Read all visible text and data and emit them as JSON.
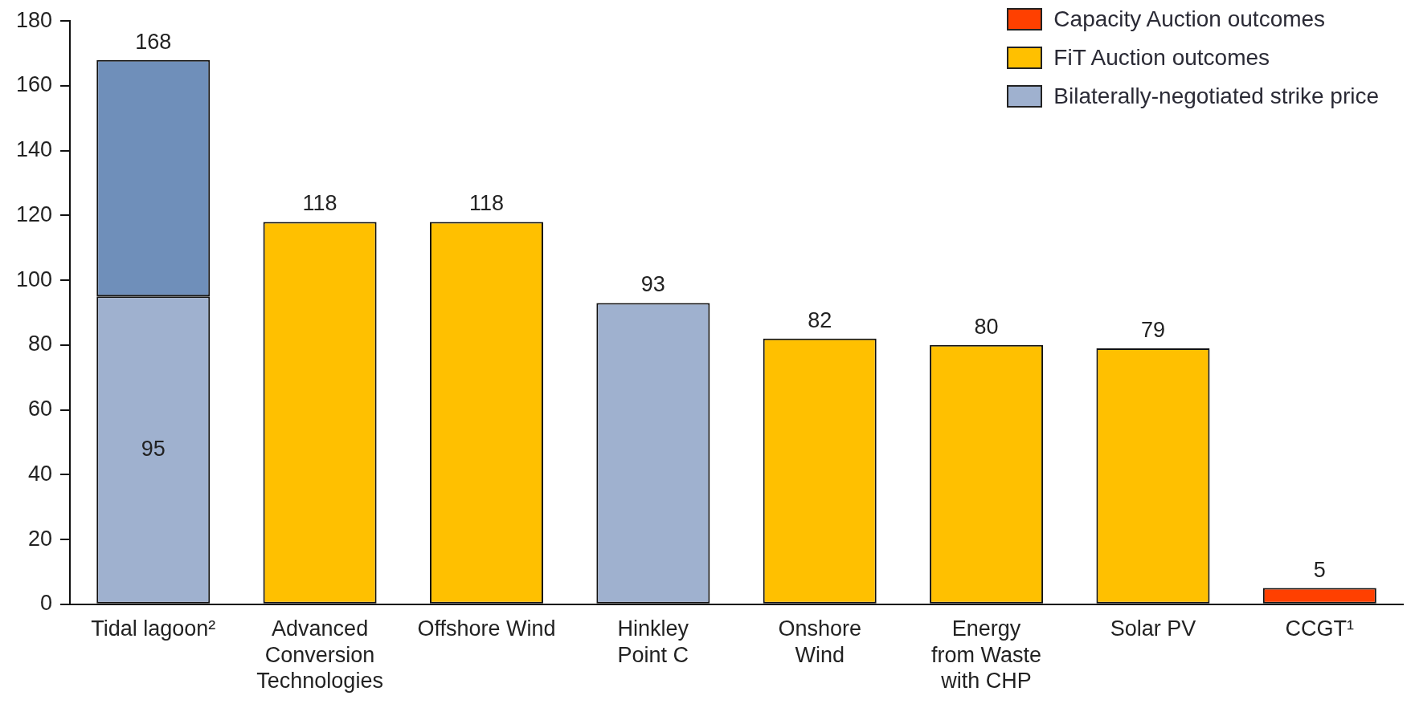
{
  "chart_data": {
    "type": "bar",
    "stacked": true,
    "categories": [
      "Tidal lagoon²",
      "Advanced\nConversion\nTechnologies",
      "Offshore Wind",
      "Hinkley\nPoint C",
      "Onshore\nWind",
      "Energy\nfrom Waste\nwith CHP",
      "Solar PV",
      "CCGT¹"
    ],
    "series": [
      {
        "name": "Bilaterally-negotiated strike price",
        "color": "#9fb1cf",
        "values": [
          95,
          null,
          null,
          93,
          null,
          null,
          null,
          null
        ],
        "value_labels": [
          "95",
          null,
          null,
          "93",
          null,
          null,
          null,
          null
        ]
      },
      {
        "color": "#6f8fba",
        "values": [
          73,
          null,
          null,
          null,
          null,
          null,
          null,
          null
        ]
      },
      {
        "name": "FiT Auction outcomes",
        "color": "#ffc000",
        "values": [
          null,
          118,
          118,
          null,
          82,
          80,
          79,
          null
        ],
        "value_labels": [
          null,
          "118",
          "118",
          null,
          "82",
          "80",
          "79",
          null
        ]
      },
      {
        "name": "Capacity Auction outcomes",
        "color": "#ff4000",
        "values": [
          null,
          null,
          null,
          null,
          null,
          null,
          null,
          5
        ],
        "value_labels": [
          null,
          null,
          null,
          null,
          null,
          null,
          null,
          "5"
        ]
      }
    ],
    "totals": [
      "168",
      null,
      null,
      null,
      null,
      null,
      null,
      null
    ],
    "ylim": [
      0,
      180
    ],
    "yticks": [
      0,
      20,
      40,
      60,
      80,
      100,
      120,
      140,
      160,
      180
    ],
    "grid": false,
    "legend": "top right"
  }
}
